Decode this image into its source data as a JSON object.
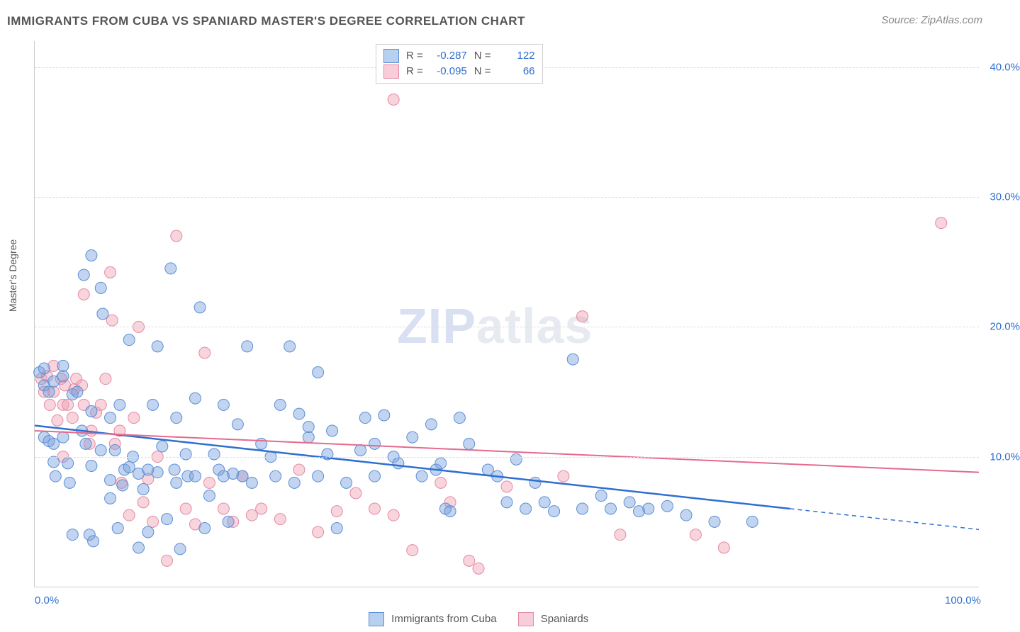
{
  "title": "IMMIGRANTS FROM CUBA VS SPANIARD MASTER'S DEGREE CORRELATION CHART",
  "source_prefix": "Source: ",
  "source_name": "ZipAtlas.com",
  "y_axis_title": "Master's Degree",
  "watermark_a": "ZIP",
  "watermark_b": "atlas",
  "chart": {
    "type": "scatter",
    "xlim": [
      0,
      100
    ],
    "ylim": [
      0,
      42
    ],
    "x_ticks": [
      {
        "v": 0,
        "label": "0.0%"
      },
      {
        "v": 100,
        "label": "100.0%"
      }
    ],
    "y_ticks": [
      {
        "v": 10,
        "label": "10.0%"
      },
      {
        "v": 20,
        "label": "20.0%"
      },
      {
        "v": 30,
        "label": "30.0%"
      },
      {
        "v": 40,
        "label": "40.0%"
      }
    ],
    "grid_color": "#dddddd",
    "background_color": "#ffffff",
    "marker_radius": 8,
    "series": [
      {
        "name": "Immigrants from Cuba",
        "color_fill": "rgba(120,160,220,0.45)",
        "color_stroke": "#5a8fd6",
        "swatch_fill": "#b8d0f0",
        "swatch_border": "#5a8fd6",
        "R": "-0.287",
        "N": "122",
        "trend": {
          "x1": 0,
          "y1": 12.4,
          "x2": 80,
          "y2": 6.0,
          "x3": 100,
          "y3": 4.4,
          "color": "#2f6fd0"
        },
        "points": [
          [
            0.5,
            16.5
          ],
          [
            1,
            11.5
          ],
          [
            1,
            15.5
          ],
          [
            1,
            16.8
          ],
          [
            1.5,
            11.2
          ],
          [
            1.5,
            15.0
          ],
          [
            2,
            9.6
          ],
          [
            2,
            11.0
          ],
          [
            2,
            15.8
          ],
          [
            2.2,
            8.5
          ],
          [
            3,
            11.5
          ],
          [
            3,
            17.0
          ],
          [
            3,
            16.2
          ],
          [
            3.5,
            9.5
          ],
          [
            3.7,
            8.0
          ],
          [
            4,
            14.8
          ],
          [
            4,
            4.0
          ],
          [
            4.5,
            15.0
          ],
          [
            5,
            12.0
          ],
          [
            5.2,
            24.0
          ],
          [
            5.4,
            11.0
          ],
          [
            5.8,
            4.0
          ],
          [
            6,
            25.5
          ],
          [
            6,
            13.5
          ],
          [
            6,
            9.3
          ],
          [
            6.2,
            3.5
          ],
          [
            7,
            10.5
          ],
          [
            7,
            23.0
          ],
          [
            7.2,
            21.0
          ],
          [
            8,
            6.8
          ],
          [
            8,
            13.0
          ],
          [
            8,
            8.2
          ],
          [
            8.5,
            10.5
          ],
          [
            8.8,
            4.5
          ],
          [
            9,
            14.0
          ],
          [
            9.3,
            7.8
          ],
          [
            9.5,
            9.0
          ],
          [
            10,
            9.2
          ],
          [
            10,
            19.0
          ],
          [
            10.4,
            10.0
          ],
          [
            11,
            3.0
          ],
          [
            11,
            8.7
          ],
          [
            11.5,
            7.5
          ],
          [
            12,
            4.2
          ],
          [
            12,
            9.0
          ],
          [
            12.5,
            14.0
          ],
          [
            13,
            18.5
          ],
          [
            13,
            8.8
          ],
          [
            13.5,
            10.8
          ],
          [
            14,
            5.2
          ],
          [
            14.4,
            24.5
          ],
          [
            14.8,
            9.0
          ],
          [
            15,
            13.0
          ],
          [
            15,
            8.0
          ],
          [
            15.4,
            2.9
          ],
          [
            16,
            10.2
          ],
          [
            16.2,
            8.5
          ],
          [
            17,
            14.5
          ],
          [
            17,
            8.5
          ],
          [
            17.5,
            21.5
          ],
          [
            18,
            4.5
          ],
          [
            18.5,
            7.0
          ],
          [
            19,
            10.2
          ],
          [
            19.5,
            9.0
          ],
          [
            20,
            14.0
          ],
          [
            20,
            8.5
          ],
          [
            20.5,
            5.0
          ],
          [
            21,
            8.7
          ],
          [
            21.5,
            12.5
          ],
          [
            22,
            8.5
          ],
          [
            22.5,
            18.5
          ],
          [
            23,
            8.0
          ],
          [
            24,
            11.0
          ],
          [
            25,
            10.0
          ],
          [
            25.5,
            8.5
          ],
          [
            26,
            14.0
          ],
          [
            27,
            18.5
          ],
          [
            27.5,
            8.0
          ],
          [
            28,
            13.3
          ],
          [
            29,
            11.5
          ],
          [
            29,
            12.3
          ],
          [
            30,
            16.5
          ],
          [
            30,
            8.5
          ],
          [
            31,
            10.2
          ],
          [
            31.5,
            12.0
          ],
          [
            32,
            4.5
          ],
          [
            33,
            8.0
          ],
          [
            34.5,
            10.5
          ],
          [
            35,
            13.0
          ],
          [
            36,
            11.0
          ],
          [
            36,
            8.5
          ],
          [
            37,
            13.2
          ],
          [
            38,
            10.0
          ],
          [
            38.5,
            9.5
          ],
          [
            40,
            11.5
          ],
          [
            41,
            8.5
          ],
          [
            42,
            12.5
          ],
          [
            42.5,
            9.0
          ],
          [
            43,
            9.5
          ],
          [
            43.5,
            6.0
          ],
          [
            44,
            5.8
          ],
          [
            45,
            13.0
          ],
          [
            46,
            11.0
          ],
          [
            48,
            9.0
          ],
          [
            49,
            8.5
          ],
          [
            50,
            6.5
          ],
          [
            51,
            9.8
          ],
          [
            52,
            6.0
          ],
          [
            53,
            8.0
          ],
          [
            54,
            6.5
          ],
          [
            55,
            5.8
          ],
          [
            57,
            17.5
          ],
          [
            58,
            6.0
          ],
          [
            60,
            7.0
          ],
          [
            61,
            6.0
          ],
          [
            63,
            6.5
          ],
          [
            64,
            5.8
          ],
          [
            65,
            6.0
          ],
          [
            67,
            6.2
          ],
          [
            69,
            5.5
          ],
          [
            72,
            5.0
          ],
          [
            76,
            5.0
          ]
        ]
      },
      {
        "name": "Spaniards",
        "color_fill": "rgba(240,160,180,0.45)",
        "color_stroke": "#e48aa3",
        "swatch_fill": "#f7cdd9",
        "swatch_border": "#e48aa3",
        "R": "-0.095",
        "N": "66",
        "trend": {
          "x1": 0,
          "y1": 12.0,
          "x2": 100,
          "y2": 8.8,
          "color": "#e56a8c"
        },
        "points": [
          [
            0.7,
            16.0
          ],
          [
            1,
            15.0
          ],
          [
            1.3,
            16.2
          ],
          [
            1.6,
            14.0
          ],
          [
            2,
            15.0
          ],
          [
            2,
            17.0
          ],
          [
            2.4,
            12.8
          ],
          [
            2.8,
            16.0
          ],
          [
            3,
            14.0
          ],
          [
            3,
            10.0
          ],
          [
            3.2,
            15.5
          ],
          [
            3.5,
            14.0
          ],
          [
            4,
            13.0
          ],
          [
            4.2,
            15.2
          ],
          [
            4.4,
            16.0
          ],
          [
            5,
            15.5
          ],
          [
            5.2,
            14.0
          ],
          [
            5.2,
            22.5
          ],
          [
            5.8,
            11.0
          ],
          [
            6,
            12.0
          ],
          [
            6.5,
            13.4
          ],
          [
            7,
            14.0
          ],
          [
            7.5,
            16.0
          ],
          [
            8,
            24.2
          ],
          [
            8.2,
            20.5
          ],
          [
            8.5,
            11.0
          ],
          [
            9,
            12.0
          ],
          [
            9.2,
            8.0
          ],
          [
            10,
            5.5
          ],
          [
            10.5,
            13.0
          ],
          [
            11,
            20.0
          ],
          [
            11.5,
            6.5
          ],
          [
            12,
            8.3
          ],
          [
            12.5,
            5.0
          ],
          [
            13,
            10.0
          ],
          [
            14,
            2.0
          ],
          [
            15,
            27.0
          ],
          [
            16,
            6.0
          ],
          [
            17,
            4.8
          ],
          [
            18,
            18.0
          ],
          [
            18.5,
            8.0
          ],
          [
            20,
            6.0
          ],
          [
            21,
            5.0
          ],
          [
            22,
            8.5
          ],
          [
            23,
            5.5
          ],
          [
            24,
            6.0
          ],
          [
            26,
            5.2
          ],
          [
            28,
            9.0
          ],
          [
            30,
            4.2
          ],
          [
            32,
            5.8
          ],
          [
            34,
            7.2
          ],
          [
            36,
            6.0
          ],
          [
            38,
            37.5
          ],
          [
            38,
            5.5
          ],
          [
            40,
            2.8
          ],
          [
            43,
            8.0
          ],
          [
            44,
            6.5
          ],
          [
            46,
            2.0
          ],
          [
            47,
            1.4
          ],
          [
            50,
            7.7
          ],
          [
            56,
            8.5
          ],
          [
            58,
            20.8
          ],
          [
            62,
            4.0
          ],
          [
            70,
            4.0
          ],
          [
            73,
            3.0
          ],
          [
            96,
            28.0
          ]
        ]
      }
    ]
  },
  "legend_corr": {
    "R_label": "R =",
    "N_label": "N ="
  }
}
